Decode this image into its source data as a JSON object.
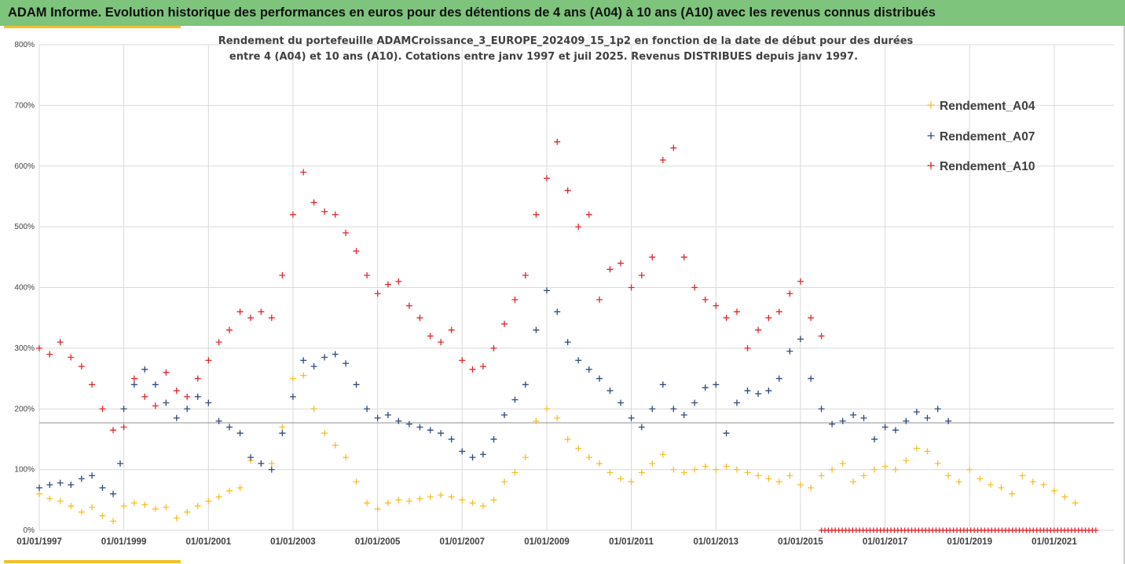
{
  "banner": {
    "title": "ADAM Informe. Evolution historique des performances en euros pour des détentions de 4 ans (A04) à 10 ans (A10) avec les revenus connus distribués"
  },
  "colors": {
    "banner_bg": "#7ec47c",
    "accent": "#f2c12e",
    "A04": "#f5c02a",
    "A07": "#2f4a7a",
    "A10": "#e3262b",
    "zero_line": "#e3262b",
    "ref_line": "#8c8c8c",
    "grid": "#d9d9d9"
  },
  "chart_data": {
    "type": "scatter",
    "subtitle_lines": [
      "Rendement du portefeuille ADAMCroissance_3_EUROPE_202409_15_1p2  en fonction de la date de début pour des durées",
      "entre 4 (A04) et 10 ans (A10). Cotations entre janv 1997 et juil 2025. Revenus DISTRIBUES depuis janv 1997."
    ],
    "ylim": [
      0,
      800
    ],
    "y_ticks": [
      0,
      100,
      200,
      300,
      400,
      500,
      600,
      700,
      800
    ],
    "y_tick_labels": [
      "0%",
      "100%",
      "200%",
      "300%",
      "400%",
      "500%",
      "600%",
      "700%",
      "800%"
    ],
    "xlim": [
      "1997-01-01",
      "2022-06-01"
    ],
    "x_ticks": [
      "1997-01-01",
      "1999-01-01",
      "2001-01-01",
      "2003-01-01",
      "2005-01-01",
      "2007-01-01",
      "2009-01-01",
      "2011-01-01",
      "2013-01-01",
      "2015-01-01",
      "2017-01-01",
      "2019-01-01",
      "2021-01-01"
    ],
    "x_tick_labels": [
      "01/01/1997",
      "01/01/1999",
      "01/01/2001",
      "01/01/2003",
      "01/01/2005",
      "01/01/2007",
      "01/01/2009",
      "01/01/2011",
      "01/01/2013",
      "01/01/2015",
      "01/01/2017",
      "01/01/2019",
      "01/01/2021"
    ],
    "reference_line_y": 177,
    "grid": true,
    "legend_position": "top-right",
    "marker": "+",
    "series": [
      {
        "name": "Rendement_A04",
        "color": "#f5c02a",
        "points": [
          [
            "1997-01-01",
            60
          ],
          [
            "1997-04-01",
            52
          ],
          [
            "1997-07-01",
            48
          ],
          [
            "1997-10-01",
            40
          ],
          [
            "1998-01-01",
            30
          ],
          [
            "1998-04-01",
            38
          ],
          [
            "1998-07-01",
            24
          ],
          [
            "1998-10-01",
            15
          ],
          [
            "1999-01-01",
            40
          ],
          [
            "1999-04-01",
            45
          ],
          [
            "1999-07-01",
            42
          ],
          [
            "1999-10-01",
            35
          ],
          [
            "2000-01-01",
            38
          ],
          [
            "2000-04-01",
            20
          ],
          [
            "2000-07-01",
            30
          ],
          [
            "2000-10-01",
            40
          ],
          [
            "2001-01-01",
            48
          ],
          [
            "2001-04-01",
            55
          ],
          [
            "2001-07-01",
            65
          ],
          [
            "2001-10-01",
            70
          ],
          [
            "2002-01-01",
            115
          ],
          [
            "2002-04-01",
            110
          ],
          [
            "2002-07-01",
            110
          ],
          [
            "2002-10-01",
            170
          ],
          [
            "2003-01-01",
            250
          ],
          [
            "2003-04-01",
            255
          ],
          [
            "2003-07-01",
            200
          ],
          [
            "2003-10-01",
            160
          ],
          [
            "2004-01-01",
            140
          ],
          [
            "2004-04-01",
            120
          ],
          [
            "2004-07-01",
            80
          ],
          [
            "2004-10-01",
            45
          ],
          [
            "2005-01-01",
            35
          ],
          [
            "2005-04-01",
            45
          ],
          [
            "2005-07-01",
            50
          ],
          [
            "2005-10-01",
            48
          ],
          [
            "2006-01-01",
            52
          ],
          [
            "2006-04-01",
            55
          ],
          [
            "2006-07-01",
            58
          ],
          [
            "2006-10-01",
            55
          ],
          [
            "2007-01-01",
            50
          ],
          [
            "2007-04-01",
            45
          ],
          [
            "2007-07-01",
            40
          ],
          [
            "2007-10-01",
            50
          ],
          [
            "2008-01-01",
            80
          ],
          [
            "2008-04-01",
            95
          ],
          [
            "2008-07-01",
            120
          ],
          [
            "2008-10-01",
            180
          ],
          [
            "2009-01-01",
            200
          ],
          [
            "2009-04-01",
            185
          ],
          [
            "2009-07-01",
            150
          ],
          [
            "2009-10-01",
            135
          ],
          [
            "2010-01-01",
            120
          ],
          [
            "2010-04-01",
            110
          ],
          [
            "2010-07-01",
            95
          ],
          [
            "2010-10-01",
            85
          ],
          [
            "2011-01-01",
            80
          ],
          [
            "2011-04-01",
            95
          ],
          [
            "2011-07-01",
            110
          ],
          [
            "2011-10-01",
            125
          ],
          [
            "2012-01-01",
            100
          ],
          [
            "2012-04-01",
            95
          ],
          [
            "2012-07-01",
            100
          ],
          [
            "2012-10-01",
            105
          ],
          [
            "2013-01-01",
            100
          ],
          [
            "2013-04-01",
            105
          ],
          [
            "2013-07-01",
            100
          ],
          [
            "2013-10-01",
            95
          ],
          [
            "2014-01-01",
            90
          ],
          [
            "2014-04-01",
            85
          ],
          [
            "2014-07-01",
            80
          ],
          [
            "2014-10-01",
            90
          ],
          [
            "2015-01-01",
            75
          ],
          [
            "2015-04-01",
            70
          ],
          [
            "2015-07-01",
            90
          ],
          [
            "2015-10-01",
            100
          ],
          [
            "2016-01-01",
            110
          ],
          [
            "2016-04-01",
            80
          ],
          [
            "2016-07-01",
            90
          ],
          [
            "2016-10-01",
            100
          ],
          [
            "2017-01-01",
            105
          ],
          [
            "2017-04-01",
            100
          ],
          [
            "2017-07-01",
            115
          ],
          [
            "2017-10-01",
            135
          ],
          [
            "2018-01-01",
            130
          ],
          [
            "2018-04-01",
            110
          ],
          [
            "2018-07-01",
            90
          ],
          [
            "2018-10-01",
            80
          ],
          [
            "2019-01-01",
            100
          ],
          [
            "2019-04-01",
            85
          ],
          [
            "2019-07-01",
            75
          ],
          [
            "2019-10-01",
            70
          ],
          [
            "2020-01-01",
            60
          ],
          [
            "2020-04-01",
            90
          ],
          [
            "2020-07-01",
            80
          ],
          [
            "2020-10-01",
            75
          ],
          [
            "2021-01-01",
            65
          ],
          [
            "2021-04-01",
            55
          ],
          [
            "2021-07-01",
            45
          ]
        ]
      },
      {
        "name": "Rendement_A07",
        "color": "#2f4a7a",
        "points": [
          [
            "1997-01-01",
            70
          ],
          [
            "1997-04-01",
            75
          ],
          [
            "1997-07-01",
            78
          ],
          [
            "1997-10-01",
            75
          ],
          [
            "1998-01-01",
            85
          ],
          [
            "1998-04-01",
            90
          ],
          [
            "1998-07-01",
            70
          ],
          [
            "1998-10-01",
            60
          ],
          [
            "1998-12-01",
            110
          ],
          [
            "1999-01-01",
            200
          ],
          [
            "1999-04-01",
            240
          ],
          [
            "1999-07-01",
            265
          ],
          [
            "1999-10-01",
            240
          ],
          [
            "2000-01-01",
            210
          ],
          [
            "2000-04-01",
            185
          ],
          [
            "2000-07-01",
            200
          ],
          [
            "2000-10-01",
            220
          ],
          [
            "2001-01-01",
            210
          ],
          [
            "2001-04-01",
            180
          ],
          [
            "2001-07-01",
            170
          ],
          [
            "2001-10-01",
            160
          ],
          [
            "2002-01-01",
            120
          ],
          [
            "2002-04-01",
            110
          ],
          [
            "2002-07-01",
            100
          ],
          [
            "2002-10-01",
            160
          ],
          [
            "2003-01-01",
            220
          ],
          [
            "2003-04-01",
            280
          ],
          [
            "2003-07-01",
            270
          ],
          [
            "2003-10-01",
            285
          ],
          [
            "2004-01-01",
            290
          ],
          [
            "2004-04-01",
            275
          ],
          [
            "2004-07-01",
            240
          ],
          [
            "2004-10-01",
            200
          ],
          [
            "2005-01-01",
            185
          ],
          [
            "2005-04-01",
            190
          ],
          [
            "2005-07-01",
            180
          ],
          [
            "2005-10-01",
            175
          ],
          [
            "2006-01-01",
            170
          ],
          [
            "2006-04-01",
            165
          ],
          [
            "2006-07-01",
            160
          ],
          [
            "2006-10-01",
            150
          ],
          [
            "2007-01-01",
            130
          ],
          [
            "2007-04-01",
            120
          ],
          [
            "2007-07-01",
            125
          ],
          [
            "2007-10-01",
            150
          ],
          [
            "2008-01-01",
            190
          ],
          [
            "2008-04-01",
            215
          ],
          [
            "2008-07-01",
            240
          ],
          [
            "2008-10-01",
            330
          ],
          [
            "2009-01-01",
            395
          ],
          [
            "2009-04-01",
            360
          ],
          [
            "2009-07-01",
            310
          ],
          [
            "2009-10-01",
            280
          ],
          [
            "2010-01-01",
            265
          ],
          [
            "2010-04-01",
            250
          ],
          [
            "2010-07-01",
            230
          ],
          [
            "2010-10-01",
            210
          ],
          [
            "2011-01-01",
            185
          ],
          [
            "2011-04-01",
            170
          ],
          [
            "2011-07-01",
            200
          ],
          [
            "2011-10-01",
            240
          ],
          [
            "2012-01-01",
            200
          ],
          [
            "2012-04-01",
            190
          ],
          [
            "2012-07-01",
            210
          ],
          [
            "2012-10-01",
            235
          ],
          [
            "2013-01-01",
            240
          ],
          [
            "2013-04-01",
            160
          ],
          [
            "2013-07-01",
            210
          ],
          [
            "2013-10-01",
            230
          ],
          [
            "2014-01-01",
            225
          ],
          [
            "2014-04-01",
            230
          ],
          [
            "2014-07-01",
            250
          ],
          [
            "2014-10-01",
            295
          ],
          [
            "2015-01-01",
            315
          ],
          [
            "2015-04-01",
            250
          ],
          [
            "2015-07-01",
            200
          ],
          [
            "2015-10-01",
            175
          ],
          [
            "2016-01-01",
            180
          ],
          [
            "2016-04-01",
            190
          ],
          [
            "2016-07-01",
            185
          ],
          [
            "2016-10-01",
            150
          ],
          [
            "2017-01-01",
            170
          ],
          [
            "2017-04-01",
            165
          ],
          [
            "2017-07-01",
            180
          ],
          [
            "2017-10-01",
            195
          ],
          [
            "2018-01-01",
            185
          ],
          [
            "2018-04-01",
            200
          ],
          [
            "2018-07-01",
            180
          ]
        ]
      },
      {
        "name": "Rendement_A10",
        "color": "#e3262b",
        "points": [
          [
            "1997-01-01",
            300
          ],
          [
            "1997-04-01",
            290
          ],
          [
            "1997-07-01",
            310
          ],
          [
            "1997-10-01",
            285
          ],
          [
            "1998-01-01",
            270
          ],
          [
            "1998-04-01",
            240
          ],
          [
            "1998-07-01",
            200
          ],
          [
            "1998-10-01",
            165
          ],
          [
            "1999-01-01",
            170
          ],
          [
            "1999-04-01",
            250
          ],
          [
            "1999-07-01",
            220
          ],
          [
            "1999-10-01",
            205
          ],
          [
            "2000-01-01",
            260
          ],
          [
            "2000-04-01",
            230
          ],
          [
            "2000-07-01",
            220
          ],
          [
            "2000-10-01",
            250
          ],
          [
            "2001-01-01",
            280
          ],
          [
            "2001-04-01",
            310
          ],
          [
            "2001-07-01",
            330
          ],
          [
            "2001-10-01",
            360
          ],
          [
            "2002-01-01",
            350
          ],
          [
            "2002-04-01",
            360
          ],
          [
            "2002-07-01",
            350
          ],
          [
            "2002-10-01",
            420
          ],
          [
            "2003-01-01",
            520
          ],
          [
            "2003-04-01",
            590
          ],
          [
            "2003-07-01",
            540
          ],
          [
            "2003-10-01",
            525
          ],
          [
            "2004-01-01",
            520
          ],
          [
            "2004-04-01",
            490
          ],
          [
            "2004-07-01",
            460
          ],
          [
            "2004-10-01",
            420
          ],
          [
            "2005-01-01",
            390
          ],
          [
            "2005-04-01",
            405
          ],
          [
            "2005-07-01",
            410
          ],
          [
            "2005-10-01",
            370
          ],
          [
            "2006-01-01",
            350
          ],
          [
            "2006-04-01",
            320
          ],
          [
            "2006-07-01",
            310
          ],
          [
            "2006-10-01",
            330
          ],
          [
            "2007-01-01",
            280
          ],
          [
            "2007-04-01",
            265
          ],
          [
            "2007-07-01",
            270
          ],
          [
            "2007-10-01",
            300
          ],
          [
            "2008-01-01",
            340
          ],
          [
            "2008-04-01",
            380
          ],
          [
            "2008-07-01",
            420
          ],
          [
            "2008-10-01",
            520
          ],
          [
            "2009-01-01",
            580
          ],
          [
            "2009-04-01",
            640
          ],
          [
            "2009-07-01",
            560
          ],
          [
            "2009-10-01",
            500
          ],
          [
            "2010-01-01",
            520
          ],
          [
            "2010-04-01",
            380
          ],
          [
            "2010-07-01",
            430
          ],
          [
            "2010-10-01",
            440
          ],
          [
            "2011-01-01",
            400
          ],
          [
            "2011-04-01",
            420
          ],
          [
            "2011-07-01",
            450
          ],
          [
            "2011-10-01",
            610
          ],
          [
            "2012-01-01",
            630
          ],
          [
            "2012-04-01",
            450
          ],
          [
            "2012-07-01",
            400
          ],
          [
            "2012-10-01",
            380
          ],
          [
            "2013-01-01",
            370
          ],
          [
            "2013-04-01",
            350
          ],
          [
            "2013-07-01",
            360
          ],
          [
            "2013-10-01",
            300
          ],
          [
            "2014-01-01",
            330
          ],
          [
            "2014-04-01",
            350
          ],
          [
            "2014-07-01",
            360
          ],
          [
            "2014-10-01",
            390
          ],
          [
            "2015-01-01",
            410
          ],
          [
            "2015-04-01",
            350
          ],
          [
            "2015-07-01",
            320
          ]
        ]
      }
    ],
    "zero_line_x": [
      "2015-07-01",
      "2022-01-01"
    ]
  }
}
